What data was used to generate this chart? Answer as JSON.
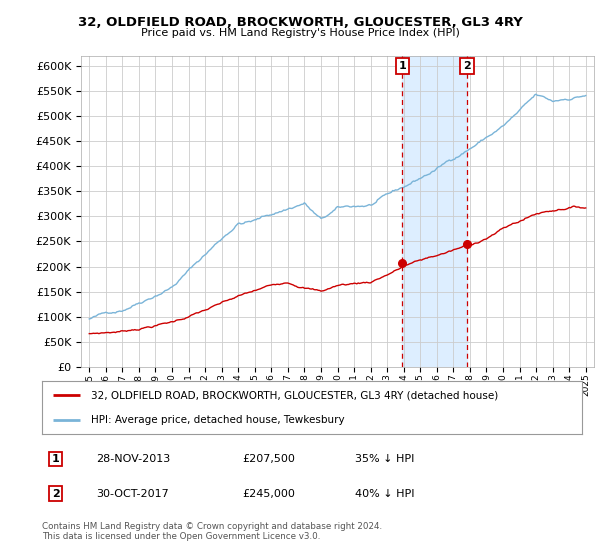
{
  "title": "32, OLDFIELD ROAD, BROCKWORTH, GLOUCESTER, GL3 4RY",
  "subtitle": "Price paid vs. HM Land Registry's House Price Index (HPI)",
  "property_label": "32, OLDFIELD ROAD, BROCKWORTH, GLOUCESTER, GL3 4RY (detached house)",
  "hpi_label": "HPI: Average price, detached house, Tewkesbury",
  "footnote": "Contains HM Land Registry data © Crown copyright and database right 2024.\nThis data is licensed under the Open Government Licence v3.0.",
  "transactions": [
    {
      "num": 1,
      "date": "28-NOV-2013",
      "price": "£207,500",
      "pct": "35% ↓ HPI",
      "year": 2013.91
    },
    {
      "num": 2,
      "date": "30-OCT-2017",
      "price": "£245,000",
      "pct": "40% ↓ HPI",
      "year": 2017.83
    }
  ],
  "ylim": [
    0,
    620000
  ],
  "yticks": [
    0,
    50000,
    100000,
    150000,
    200000,
    250000,
    300000,
    350000,
    400000,
    450000,
    500000,
    550000,
    600000
  ],
  "xlim": [
    1994.5,
    2025.5
  ],
  "hpi_color": "#7ab4d8",
  "property_color": "#cc0000",
  "shade_color": "#ddeeff",
  "transaction_box_color": "#cc0000",
  "background_color": "#ffffff",
  "grid_color": "#cccccc",
  "t1_price": 207500,
  "t2_price": 245000
}
